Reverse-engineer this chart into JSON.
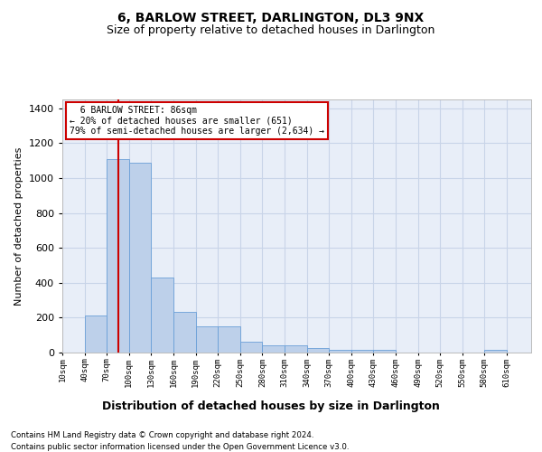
{
  "title": "6, BARLOW STREET, DARLINGTON, DL3 9NX",
  "subtitle": "Size of property relative to detached houses in Darlington",
  "xlabel": "Distribution of detached houses by size in Darlington",
  "ylabel": "Number of detached properties",
  "footer_line1": "Contains HM Land Registry data © Crown copyright and database right 2024.",
  "footer_line2": "Contains public sector information licensed under the Open Government Licence v3.0.",
  "annotation_title": "6 BARLOW STREET: 86sqm",
  "annotation_line1": "← 20% of detached houses are smaller (651)",
  "annotation_line2": "79% of semi-detached houses are larger (2,634) →",
  "bin_edges": [
    10,
    40,
    70,
    100,
    130,
    160,
    190,
    220,
    250,
    280,
    310,
    340,
    370,
    400,
    430,
    460,
    490,
    520,
    550,
    580,
    610
  ],
  "bar_values": [
    0,
    210,
    1110,
    1085,
    430,
    235,
    150,
    150,
    60,
    40,
    40,
    25,
    13,
    13,
    18,
    0,
    0,
    0,
    0,
    13,
    0
  ],
  "bar_color": "#bdd0ea",
  "bar_edge_color": "#6a9fd8",
  "grid_color": "#c8d4e8",
  "bg_color": "#e8eef8",
  "vline_x": 86,
  "vline_color": "#cc0000",
  "ylim": [
    0,
    1450
  ],
  "xlim_left": 10,
  "xlim_right": 643,
  "annotation_box_color": "#cc0000",
  "title_fontsize": 10,
  "subtitle_fontsize": 9,
  "yticks": [
    0,
    200,
    400,
    600,
    800,
    1000,
    1200,
    1400
  ]
}
